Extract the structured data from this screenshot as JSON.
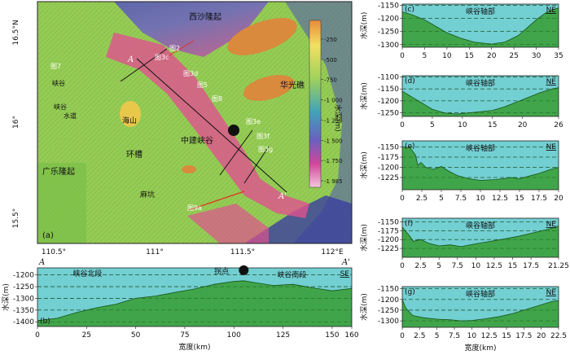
{
  "colors": {
    "water": "#72cfd2",
    "seafloor": "#3ba03b",
    "canyon": "#e0518f",
    "terrain": "#9bd057",
    "deep": "#4d58b8",
    "uplift": "#d98a3c",
    "grid": "#1a4a1a"
  },
  "map": {
    "panel_label": "(a)",
    "lat_labels": [
      "16.5°N",
      "16°",
      "15.5°"
    ],
    "lon_labels": [
      "110.5°",
      "111°",
      "111.5°",
      "112°E"
    ],
    "places": {
      "xisha": "西沙隆起",
      "huaguang": "华光礁",
      "guangle": "广乐隆起",
      "zhongjian": "中建峡谷",
      "huancao": "环槽",
      "haishan": "海山",
      "mokeng": "麻坑",
      "canyon_w1": "峡谷",
      "canyon_w2": "峡谷",
      "canyon_w3": "水道"
    },
    "fig_refs": [
      "图7",
      "图3c",
      "图2",
      "图3d",
      "图5",
      "图8",
      "图3e",
      "图3f",
      "图3g",
      "图9a"
    ],
    "section_end_a": "A",
    "section_end_b": "A'",
    "colorbar": {
      "title": "水深(m)",
      "ticks": [
        "-250",
        "-500",
        "-750",
        "-1 000",
        "-1 250",
        "-1 500",
        "-1 750",
        "-1 985"
      ]
    }
  },
  "chart_data": [
    {
      "id": "b",
      "type": "area",
      "panel_label": "(b)",
      "title_left": "A",
      "title_right": "A'",
      "direction": "SE",
      "annotations": [
        "峡谷北段",
        "拐点",
        "峡谷南段"
      ],
      "turning_point_x": 105,
      "xlabel": "宽度(km)",
      "ylabel": "水深(m)",
      "xlim": [
        0,
        160
      ],
      "ylim": [
        -1420,
        -1170
      ],
      "xticks": [
        0,
        25,
        50,
        75,
        100,
        125,
        150,
        160
      ],
      "yticks": [
        -1200,
        -1250,
        -1300,
        -1350,
        -1400
      ],
      "x": [
        0,
        10,
        20,
        30,
        40,
        50,
        60,
        70,
        80,
        90,
        100,
        105,
        110,
        120,
        130,
        140,
        150,
        160
      ],
      "y": [
        -1395,
        -1385,
        -1360,
        -1340,
        -1325,
        -1300,
        -1290,
        -1275,
        -1260,
        -1240,
        -1228,
        -1225,
        -1232,
        -1245,
        -1240,
        -1255,
        -1268,
        -1258
      ]
    },
    {
      "id": "c",
      "type": "area",
      "panel_label": "(c)",
      "title": "峡谷轴部",
      "direction": "NE",
      "ylabel": "水深(m)",
      "xlim": [
        0,
        35
      ],
      "ylim": [
        -1310,
        -1145
      ],
      "xticks": [
        0,
        5,
        10,
        15,
        20,
        25,
        30,
        35
      ],
      "yticks": [
        -1150,
        -1200,
        -1250,
        -1300
      ],
      "x": [
        0,
        2,
        5,
        8,
        10,
        13,
        16,
        20,
        23,
        26,
        28,
        30,
        32,
        34,
        35
      ],
      "y": [
        -1175,
        -1185,
        -1205,
        -1235,
        -1255,
        -1275,
        -1290,
        -1298,
        -1290,
        -1265,
        -1235,
        -1205,
        -1180,
        -1165,
        -1160
      ]
    },
    {
      "id": "d",
      "type": "area",
      "panel_label": "(d)",
      "title": "峡谷轴部",
      "direction": "NE",
      "ylabel": "水深(m)",
      "xlim": [
        0,
        26
      ],
      "ylim": [
        -1265,
        -1095
      ],
      "xticks": [
        0,
        5,
        10,
        15,
        20,
        26
      ],
      "yticks": [
        -1100,
        -1150,
        -1200,
        -1250
      ],
      "x": [
        0,
        1,
        3,
        5,
        7,
        9,
        11,
        13,
        15,
        17,
        19,
        21,
        23,
        25,
        26
      ],
      "y": [
        -1160,
        -1175,
        -1205,
        -1235,
        -1250,
        -1255,
        -1250,
        -1245,
        -1240,
        -1225,
        -1205,
        -1185,
        -1165,
        -1150,
        -1145
      ]
    },
    {
      "id": "e",
      "type": "area",
      "panel_label": "(e)",
      "title": "峡谷轴部",
      "direction": "NE",
      "ylabel": "水深(m)",
      "xlim": [
        0,
        20
      ],
      "ylim": [
        -1255,
        -1135
      ],
      "xticks": [
        0,
        2.5,
        5,
        7.5,
        10,
        12.5,
        15,
        17.5,
        20
      ],
      "yticks": [
        -1150,
        -1175,
        -1200,
        -1225
      ],
      "x": [
        0,
        1.0,
        1.7,
        2.0,
        2.4,
        3.0,
        4.0,
        5.0,
        6.0,
        7.0,
        8.5,
        10,
        12,
        14,
        15,
        16.5,
        17.5,
        19,
        20
      ],
      "y": [
        -1150,
        -1152,
        -1170,
        -1195,
        -1188,
        -1200,
        -1205,
        -1198,
        -1210,
        -1220,
        -1228,
        -1232,
        -1230,
        -1225,
        -1228,
        -1220,
        -1215,
        -1205,
        -1200
      ]
    },
    {
      "id": "f",
      "type": "area",
      "panel_label": "(f)",
      "title": "峡谷轴部",
      "direction": "NE",
      "ylabel": "水深(m)",
      "xlim": [
        0,
        21.25
      ],
      "ylim": [
        -1250,
        -1140
      ],
      "xticks": [
        0,
        2.5,
        5,
        7.5,
        10,
        12.5,
        15,
        17.5,
        21.25
      ],
      "yticks": [
        -1150,
        -1175,
        -1200,
        -1225
      ],
      "x": [
        0,
        1,
        1.5,
        2.5,
        3.5,
        5,
        6.5,
        8,
        10,
        12,
        14,
        16,
        18,
        20,
        21.25
      ],
      "y": [
        -1165,
        -1190,
        -1205,
        -1200,
        -1210,
        -1218,
        -1215,
        -1220,
        -1212,
        -1205,
        -1198,
        -1190,
        -1180,
        -1170,
        -1162
      ]
    },
    {
      "id": "g",
      "type": "area",
      "panel_label": "(g)",
      "title": "峡谷轴部",
      "direction": "NE",
      "xlabel": "宽度(km)",
      "ylabel": "水深(m)",
      "xlim": [
        0,
        22.5
      ],
      "ylim": [
        -1330,
        -1140
      ],
      "xticks": [
        0,
        2.5,
        5,
        7.5,
        10,
        12.5,
        15,
        17.5,
        20,
        22.5
      ],
      "yticks": [
        -1150,
        -1200,
        -1250,
        -1300
      ],
      "x": [
        0,
        0.5,
        1.5,
        3,
        5,
        7,
        8.5,
        10,
        12,
        14,
        16,
        18,
        20,
        21.5,
        22.5
      ],
      "y": [
        -1200,
        -1240,
        -1275,
        -1285,
        -1292,
        -1295,
        -1300,
        -1298,
        -1290,
        -1280,
        -1265,
        -1245,
        -1225,
        -1210,
        -1205
      ]
    }
  ]
}
